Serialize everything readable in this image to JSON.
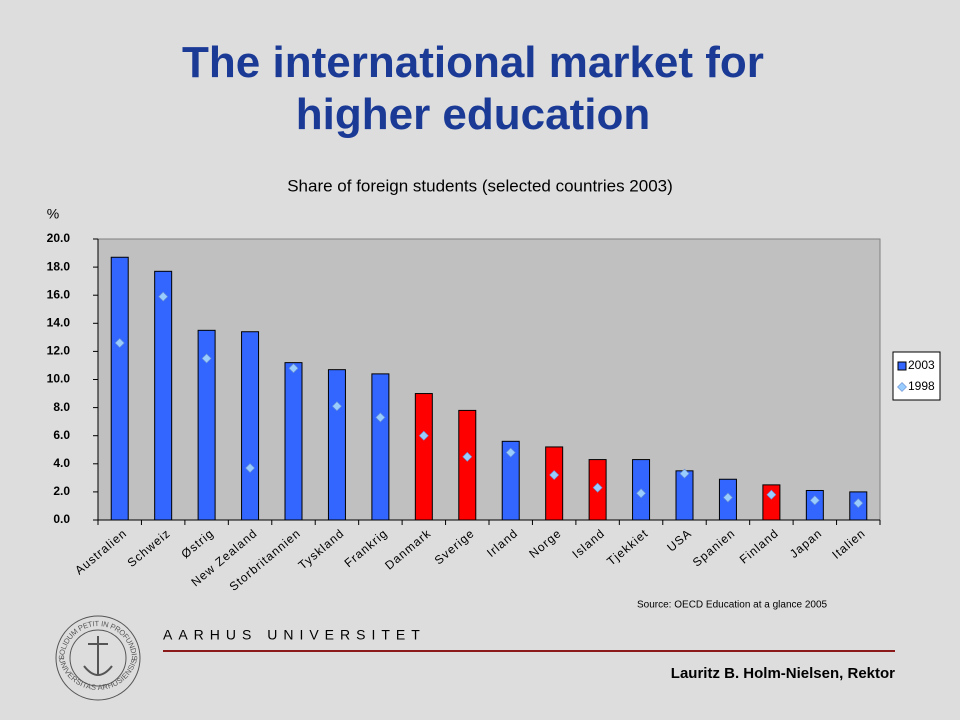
{
  "slide": {
    "title": "The international market for higher education",
    "university": "AARHUS UNIVERSITET",
    "author": "Lauritz B. Holm-Nielsen, Rektor",
    "logo_text": [
      "SOLIDUM PETIT IN PROFUNDIS",
      "UNIVERSITAS ARHUSIENSIS"
    ]
  },
  "chart_data": {
    "type": "bar",
    "title": "Share of foreign students (selected countries 2003)",
    "y_label": "%",
    "source": "Source: OECD Education at a glance 2005",
    "categories": [
      "Australien",
      "Schweiz",
      "Østrig",
      "New Zealand",
      "Storbritannien",
      "Tyskland",
      "Frankrig",
      "Danmark",
      "Sverige",
      "Irland",
      "Norge",
      "Island",
      "Tjekkiet",
      "USA",
      "Spanien",
      "Finland",
      "Japan",
      "Italien"
    ],
    "series": [
      {
        "name": "2003",
        "type": "bar",
        "color": "#3366ff",
        "values": [
          18.7,
          17.7,
          13.5,
          13.4,
          11.2,
          10.7,
          10.4,
          9.0,
          7.8,
          5.6,
          5.2,
          4.3,
          4.3,
          3.5,
          2.9,
          2.5,
          2.1,
          2.0
        ],
        "point_colors": [
          "#3366ff",
          "#3366ff",
          "#3366ff",
          "#3366ff",
          "#3366ff",
          "#3366ff",
          "#3366ff",
          "#ff0000",
          "#ff0000",
          "#3366ff",
          "#ff0000",
          "#ff0000",
          "#3366ff",
          "#3366ff",
          "#3366ff",
          "#ff0000",
          "#3366ff",
          "#3366ff"
        ]
      },
      {
        "name": "1998",
        "type": "scatter",
        "marker": "diamond",
        "color": "#99ccff",
        "values": [
          12.6,
          15.9,
          11.5,
          3.7,
          10.8,
          8.1,
          7.3,
          6.0,
          4.5,
          4.8,
          3.2,
          2.3,
          1.9,
          3.3,
          1.6,
          1.8,
          1.4,
          1.2
        ]
      }
    ],
    "ylim": [
      0,
      20
    ],
    "yticks": [
      {
        "value": 0,
        "label": "0.0"
      },
      {
        "value": 2,
        "label": "2.0"
      },
      {
        "value": 4,
        "label": "4.0"
      },
      {
        "value": 6,
        "label": "6.0"
      },
      {
        "value": 8,
        "label": "8.0"
      },
      {
        "value": 10,
        "label": "10.0"
      },
      {
        "value": 12,
        "label": "12.0"
      },
      {
        "value": 14,
        "label": "14.0"
      },
      {
        "value": 16,
        "label": "16.0"
      },
      {
        "value": 18,
        "label": "18.0"
      },
      {
        "value": 20,
        "label": "20.0"
      }
    ],
    "grid": false,
    "legend": "right"
  }
}
